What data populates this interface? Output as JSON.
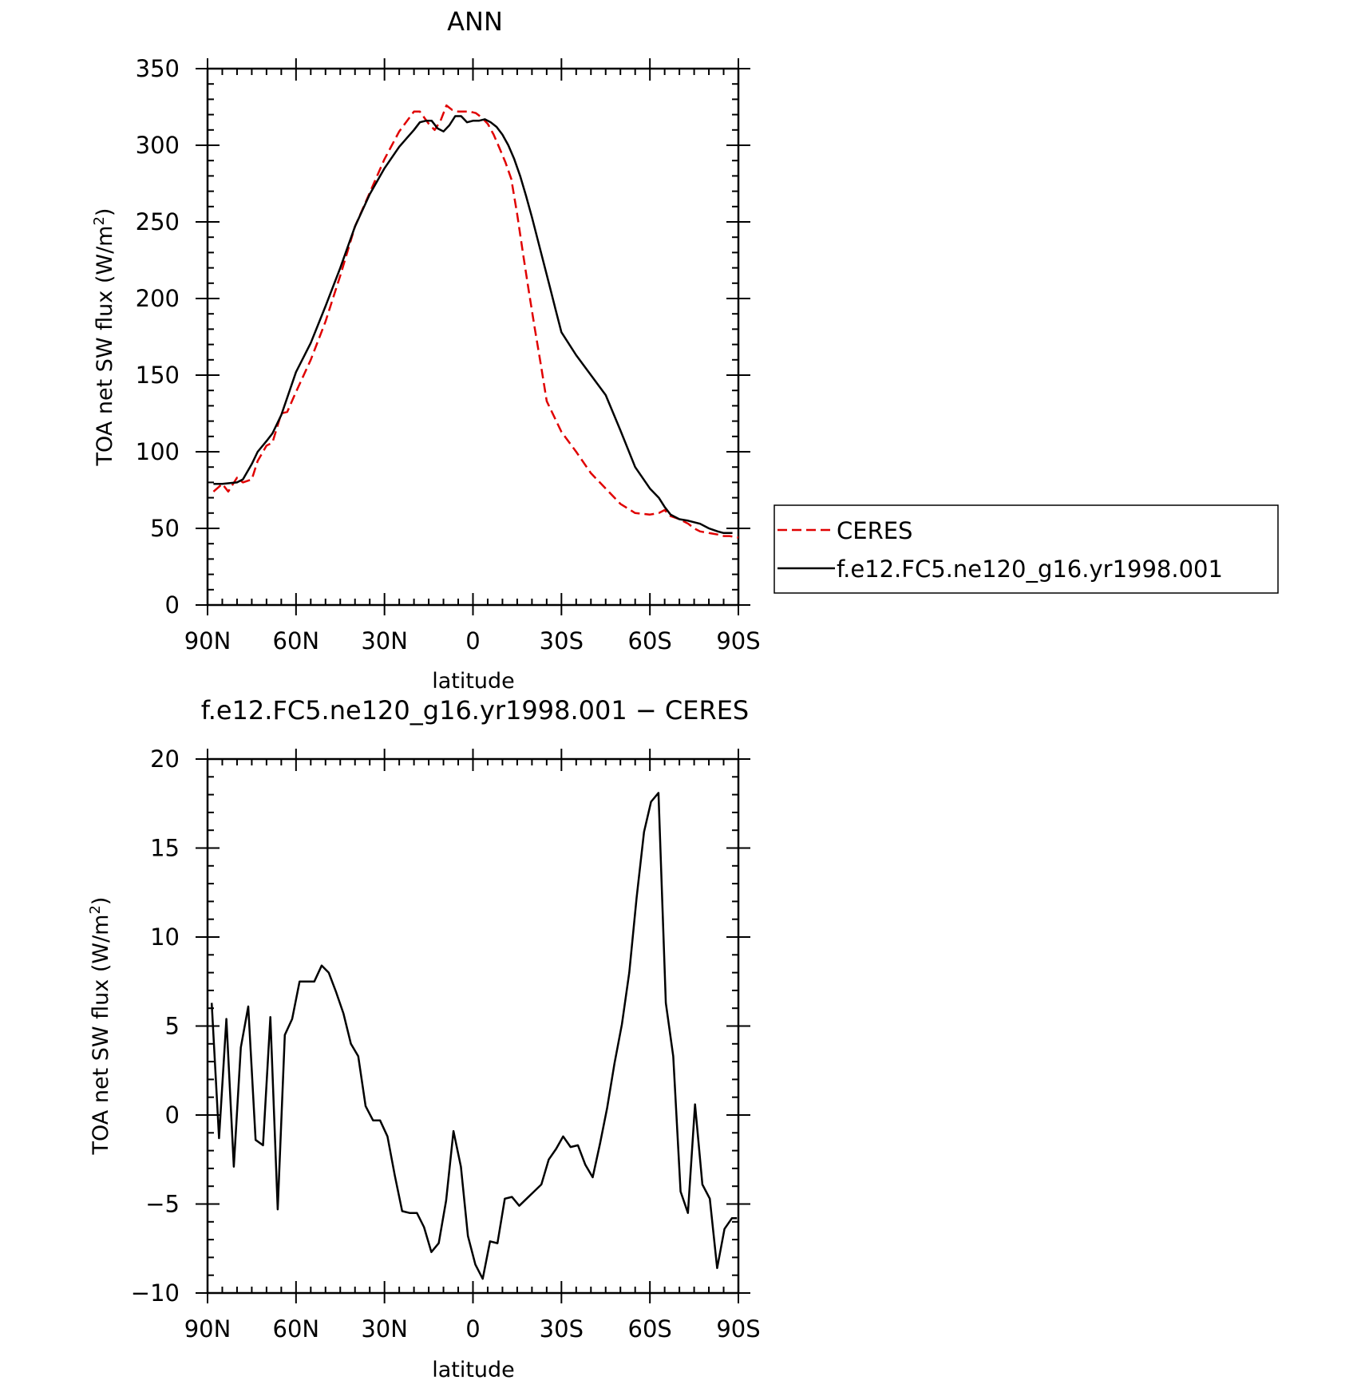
{
  "chart_data": [
    {
      "type": "line",
      "title": "ANN",
      "xlabel": "latitude",
      "ylabel": "TOA net SW flux (W/m",
      "ylabel_sup": "2",
      "ylabel_close": ")",
      "xlim": [
        -90,
        90
      ],
      "ylim": [
        0,
        350
      ],
      "x_tick_values": [
        -90,
        -60,
        -30,
        0,
        30,
        60,
        90
      ],
      "x_tick_labels": [
        "90N",
        "60N",
        "30N",
        "0",
        "30S",
        "60S",
        "90S"
      ],
      "y_tick_values": [
        0,
        50,
        100,
        150,
        200,
        250,
        300,
        350
      ],
      "y_tick_labels": [
        "0",
        "50",
        "100",
        "150",
        "200",
        "250",
        "300",
        "350"
      ],
      "grid": false,
      "legend_position": "right",
      "series": [
        {
          "name": "CERES",
          "color": "#e00000",
          "dash": "dashed",
          "x": [
            -88,
            -85,
            -83,
            -80,
            -78,
            -75,
            -73,
            -70,
            -68,
            -65,
            -63,
            -60,
            -55,
            -50,
            -45,
            -40,
            -35,
            -30,
            -25,
            -20,
            -18,
            -15,
            -13,
            -11,
            -9,
            -7,
            -5,
            -3,
            -1,
            1,
            3,
            5,
            7,
            9,
            11,
            13,
            15,
            17,
            19,
            21,
            23,
            25,
            30,
            35,
            40,
            45,
            50,
            55,
            60,
            63,
            65,
            67,
            70,
            73,
            75,
            77,
            80,
            83,
            85,
            87,
            90
          ],
          "y": [
            74,
            79,
            74,
            83,
            80,
            82,
            94,
            104,
            106,
            125,
            126,
            139,
            160,
            185,
            215,
            247,
            269,
            291,
            309,
            322,
            322,
            314,
            310,
            316,
            326,
            323,
            322,
            322,
            322,
            321,
            318,
            314,
            307,
            298,
            289,
            278,
            255,
            229,
            204,
            180,
            157,
            133,
            113,
            100,
            86,
            76,
            66,
            60,
            59,
            60,
            62,
            58,
            56,
            53,
            50,
            48,
            47,
            46,
            45,
            45,
            44
          ],
          "x_note": "approximate; read from curve"
        },
        {
          "name": "f.e12.FC5.ne120_g16.yr1998.001",
          "color": "#000000",
          "dash": "solid",
          "x": [
            -88,
            -85,
            -80,
            -78,
            -75,
            -73,
            -70,
            -68,
            -65,
            -60,
            -55,
            -50,
            -45,
            -40,
            -35,
            -30,
            -25,
            -20,
            -18,
            -16,
            -14,
            -12,
            -10,
            -8,
            -6,
            -4,
            -2,
            0,
            2,
            4,
            6,
            8,
            10,
            12,
            14,
            16,
            18,
            20,
            22,
            24,
            26,
            28,
            30,
            35,
            40,
            45,
            50,
            55,
            60,
            63,
            65,
            67,
            70,
            73,
            75,
            77,
            80,
            83,
            85,
            88
          ],
          "y": [
            79,
            79,
            80,
            82,
            92,
            100,
            107,
            112,
            124,
            152,
            171,
            195,
            220,
            247,
            268,
            285,
            299,
            310,
            315,
            316,
            316,
            311,
            309,
            313,
            319,
            319,
            315,
            316,
            316,
            317,
            315,
            312,
            307,
            300,
            291,
            280,
            267,
            253,
            238,
            223,
            208,
            193,
            178,
            163,
            150,
            137,
            114,
            90,
            76,
            70,
            64,
            59,
            56,
            55,
            54,
            53,
            50,
            48,
            47,
            47
          ]
        }
      ]
    },
    {
      "type": "line",
      "title": "f.e12.FC5.ne120_g16.yr1998.001 − CERES",
      "xlabel": "latitude",
      "ylabel": "TOA net SW flux (W/m",
      "ylabel_sup": "2",
      "ylabel_close": ")",
      "xlim": [
        -90,
        90
      ],
      "ylim": [
        -10,
        20
      ],
      "x_tick_values": [
        -90,
        -60,
        -30,
        0,
        30,
        60,
        90
      ],
      "x_tick_labels": [
        "90N",
        "60N",
        "30N",
        "0",
        "30S",
        "60S",
        "90S"
      ],
      "y_tick_values": [
        -10,
        -5,
        0,
        5,
        10,
        15,
        20
      ],
      "y_tick_labels": [
        "−10",
        "−5",
        "0",
        "5",
        "10",
        "15",
        "20"
      ],
      "grid": false,
      "series": [
        {
          "color": "#000000",
          "dash": "solid",
          "x": [
            -88.6,
            -86.1,
            -83.6,
            -81.1,
            -78.7,
            -76.2,
            -73.7,
            -71.2,
            -68.7,
            -66.2,
            -63.8,
            -61.3,
            -58.8,
            -56.3,
            -53.8,
            -51.3,
            -48.9,
            -46.4,
            -43.9,
            -41.4,
            -38.9,
            -36.4,
            -33.9,
            -31.5,
            -29.0,
            -26.5,
            -24.0,
            -21.5,
            -19.0,
            -16.6,
            -14.1,
            -11.6,
            -9.1,
            -6.6,
            -4.1,
            -1.7,
            0.8,
            3.3,
            5.8,
            8.3,
            10.8,
            13.2,
            15.7,
            18.2,
            20.7,
            23.2,
            25.7,
            28.2,
            30.6,
            33.1,
            35.6,
            38.1,
            40.6,
            43.1,
            45.5,
            48.0,
            50.5,
            53.0,
            55.5,
            58.0,
            60.4,
            62.9,
            65.4,
            67.9,
            70.4,
            72.9,
            75.3,
            77.8,
            80.3,
            82.8,
            85.3,
            87.8,
            89.5
          ],
          "y": [
            6.3,
            -1.3,
            5.4,
            -2.9,
            3.8,
            6.1,
            -1.4,
            -1.7,
            5.5,
            -5.3,
            4.5,
            5.4,
            7.5,
            7.5,
            7.5,
            8.4,
            8.0,
            6.9,
            5.7,
            4.0,
            3.3,
            0.5,
            -0.3,
            -0.3,
            -1.2,
            -3.4,
            -5.4,
            -5.5,
            -5.5,
            -6.3,
            -7.7,
            -7.2,
            -4.8,
            -0.9,
            -2.9,
            -6.8,
            -8.4,
            -9.2,
            -7.1,
            -7.2,
            -4.7,
            -4.6,
            -5.1,
            -4.7,
            -4.3,
            -3.9,
            -2.5,
            -1.9,
            -1.2,
            -1.8,
            -1.7,
            -2.8,
            -3.5,
            -1.6,
            0.4,
            2.9,
            5.1,
            8.0,
            12.2,
            15.9,
            17.6,
            18.1,
            6.3,
            3.3,
            -4.3,
            -5.5,
            0.6,
            -3.9,
            -4.7,
            -8.6,
            -6.4,
            -5.8,
            -5.8
          ]
        }
      ]
    }
  ]
}
